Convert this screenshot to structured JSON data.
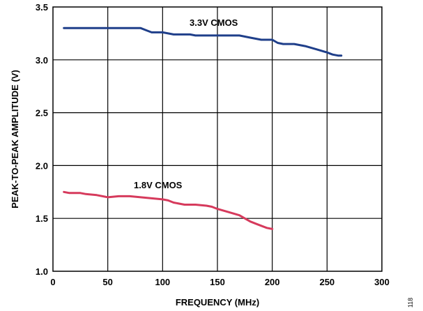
{
  "chart_data": {
    "type": "line",
    "xlabel": "FREQUENCY (MHz)",
    "ylabel": "PEAK-TO-PEAK AMPLITUDE (V)",
    "xlim": [
      0,
      300
    ],
    "ylim": [
      1.0,
      3.5
    ],
    "x_ticks": [
      "0",
      "50",
      "100",
      "150",
      "200",
      "250",
      "300"
    ],
    "y_ticks": [
      "1.0",
      "1.5",
      "2.0",
      "2.5",
      "3.0",
      "3.5"
    ],
    "grid": true,
    "figure_number": "118",
    "series": [
      {
        "name": "3.3V CMOS",
        "color": "#1f3f8a",
        "x": [
          10,
          20,
          40,
          60,
          80,
          85,
          90,
          100,
          105,
          110,
          120,
          125,
          130,
          140,
          150,
          160,
          170,
          180,
          190,
          200,
          205,
          210,
          215,
          220,
          230,
          240,
          250,
          255,
          260,
          263
        ],
        "y": [
          3.3,
          3.3,
          3.3,
          3.3,
          3.3,
          3.28,
          3.26,
          3.26,
          3.25,
          3.24,
          3.24,
          3.24,
          3.23,
          3.23,
          3.23,
          3.23,
          3.23,
          3.21,
          3.19,
          3.19,
          3.16,
          3.15,
          3.15,
          3.15,
          3.13,
          3.1,
          3.07,
          3.05,
          3.04,
          3.04
        ]
      },
      {
        "name": "1.8V CMOS",
        "color": "#d63a5c",
        "x": [
          10,
          15,
          25,
          30,
          40,
          50,
          60,
          70,
          80,
          90,
          100,
          105,
          110,
          120,
          130,
          140,
          145,
          150,
          160,
          170,
          175,
          180,
          185,
          190,
          195,
          200
        ],
        "y": [
          1.75,
          1.74,
          1.74,
          1.73,
          1.72,
          1.7,
          1.71,
          1.71,
          1.7,
          1.69,
          1.68,
          1.67,
          1.65,
          1.63,
          1.63,
          1.62,
          1.61,
          1.59,
          1.56,
          1.53,
          1.5,
          1.47,
          1.45,
          1.43,
          1.41,
          1.4
        ]
      }
    ]
  }
}
